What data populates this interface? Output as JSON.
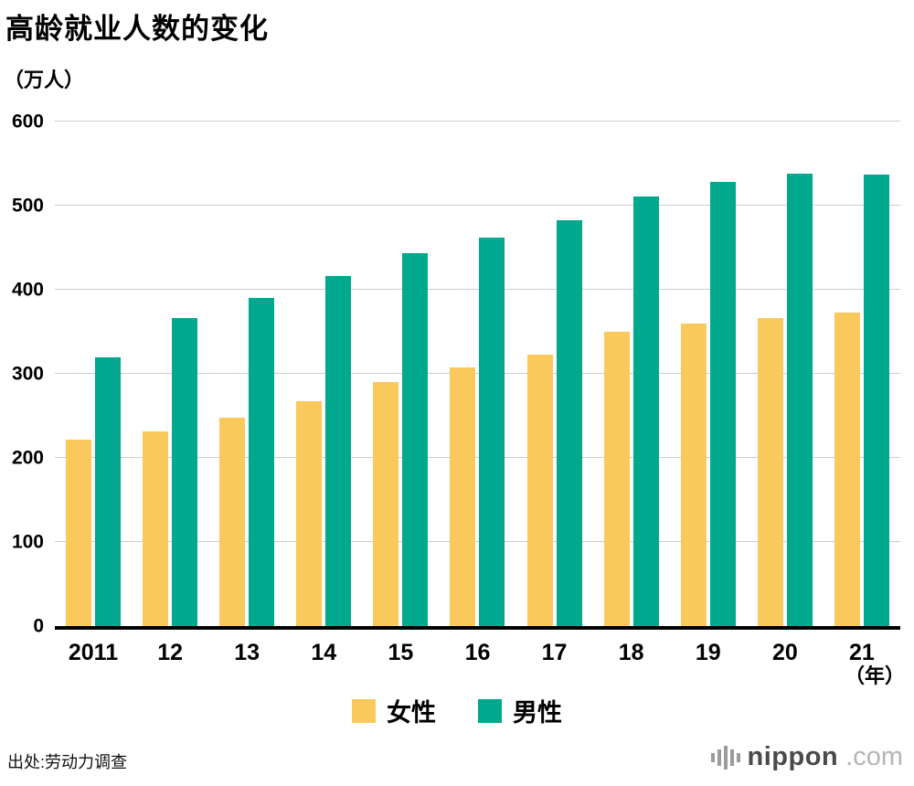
{
  "title": "高龄就业人数的变化",
  "y_axis_unit": "（万人）",
  "x_axis_unit": "（年）",
  "source": "出处:劳动力调查",
  "logo": {
    "name": "nippon",
    "tld": ".com"
  },
  "colors": {
    "female": "#F9C95C",
    "male": "#00A88E",
    "grid": "#cccccc",
    "axis": "#000000"
  },
  "chart_data": {
    "type": "bar",
    "title": "高龄就业人数的变化",
    "xlabel": "（年）",
    "ylabel": "（万人）",
    "categories": [
      "2011",
      "12",
      "13",
      "14",
      "15",
      "16",
      "17",
      "18",
      "19",
      "20",
      "21"
    ],
    "series": [
      {
        "name": "女性",
        "color": "#F9C95C",
        "values": [
          222,
          232,
          248,
          267,
          290,
          308,
          323,
          350,
          360,
          366,
          373
        ]
      },
      {
        "name": "男性",
        "color": "#00A88E",
        "values": [
          320,
          366,
          390,
          416,
          443,
          462,
          483,
          511,
          528,
          538,
          537
        ]
      }
    ],
    "ylim": [
      0,
      600
    ],
    "yticks": [
      0,
      100,
      200,
      300,
      400,
      500,
      600
    ],
    "grid": true,
    "legend_position": "bottom"
  }
}
